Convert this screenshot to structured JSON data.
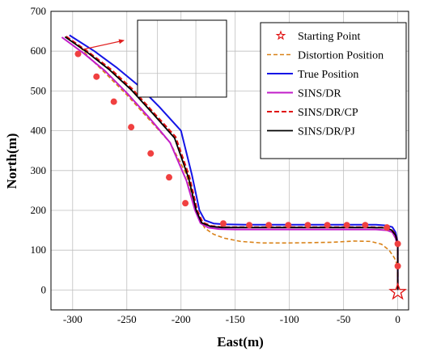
{
  "chart_data": {
    "type": "line",
    "title": "",
    "xlabel": "East(m)",
    "ylabel": "North(m)",
    "xlim": [
      -320,
      10
    ],
    "ylim": [
      -50,
      700
    ],
    "xticks": [
      -300,
      -250,
      -200,
      -150,
      -100,
      -50,
      0
    ],
    "yticks": [
      0,
      100,
      200,
      300,
      400,
      500,
      600,
      700
    ],
    "grid": true,
    "legend_position": "top-right",
    "colors": {
      "distortion": "#D98218",
      "true": "#1414E6",
      "sins_dr": "#C21DC9",
      "sins_dr_cp": "#E01010",
      "sins_dr_pj": "#000000",
      "markers": "#F04040",
      "arrow": "#E02020"
    },
    "starting_point": {
      "name": "Starting Point",
      "x": 0,
      "y": -5
    },
    "series": [
      {
        "name": "Distortion Position",
        "style": "dashed",
        "x": [
          -293,
          -285,
          -270,
          -250,
          -230,
          -210,
          -195,
          -185,
          -178,
          -170,
          -160,
          -145,
          -125,
          -100,
          -80,
          -60,
          -40,
          -25,
          -15,
          -8,
          -3,
          0
        ],
        "y": [
          610,
          585,
          545,
          490,
          430,
          370,
          290,
          190,
          155,
          140,
          130,
          122,
          118,
          118,
          119,
          120,
          123,
          122,
          115,
          100,
          80,
          60
        ]
      },
      {
        "name": "True Position",
        "style": "solid",
        "x": [
          -303,
          -280,
          -260,
          -240,
          -220,
          -200,
          -190,
          -183,
          -178,
          -170,
          -160,
          -140,
          -120,
          -100,
          -80,
          -60,
          -40,
          -20,
          -10,
          -5,
          -2,
          0,
          0,
          0
        ],
        "y": [
          640,
          600,
          560,
          515,
          460,
          400,
          290,
          200,
          175,
          167,
          165,
          164,
          164,
          164,
          164,
          164,
          164,
          164,
          162,
          158,
          145,
          120,
          60,
          0
        ]
      },
      {
        "name": "SINS/DR",
        "style": "solid",
        "x": [
          -310,
          -290,
          -270,
          -250,
          -230,
          -210,
          -195,
          -187,
          -182,
          -175,
          -165,
          -150,
          -130,
          -100,
          -70,
          -40,
          -20,
          -10,
          -5,
          -2,
          0,
          0,
          0
        ],
        "y": [
          635,
          595,
          550,
          495,
          435,
          370,
          275,
          200,
          168,
          157,
          153,
          152,
          152,
          152,
          152,
          152,
          152,
          150,
          145,
          130,
          110,
          50,
          0
        ]
      },
      {
        "name": "SINS/DR/CP",
        "style": "dashed",
        "x": [
          -306,
          -285,
          -265,
          -245,
          -225,
          -205,
          -192,
          -185,
          -180,
          -172,
          -162,
          -145,
          -125,
          -100,
          -75,
          -50,
          -25,
          -12,
          -6,
          -2,
          0,
          0,
          0
        ],
        "y": [
          637,
          597,
          555,
          505,
          445,
          385,
          283,
          200,
          170,
          161,
          158,
          158,
          158,
          158,
          158,
          158,
          158,
          157,
          152,
          140,
          115,
          55,
          0
        ]
      },
      {
        "name": "SINS/DR/PJ",
        "style": "solid",
        "x": [
          -307,
          -286,
          -266,
          -246,
          -226,
          -206,
          -193,
          -186,
          -181,
          -173,
          -163,
          -146,
          -126,
          -100,
          -75,
          -50,
          -25,
          -12,
          -6,
          -2,
          0,
          0,
          0
        ],
        "y": [
          636,
          596,
          553,
          503,
          443,
          382,
          281,
          200,
          169,
          160,
          157,
          157,
          157,
          157,
          157,
          157,
          157,
          156,
          151,
          138,
          113,
          55,
          0
        ]
      }
    ],
    "markers": {
      "x": [
        -295,
        -278,
        -262,
        -246,
        -228,
        -211,
        -196,
        -161,
        -137,
        -119,
        -101,
        -83,
        -65,
        -47,
        -30,
        -10,
        0,
        0
      ],
      "y": [
        593,
        536,
        473,
        409,
        343,
        283,
        218,
        167,
        163,
        163,
        163,
        163,
        163,
        163,
        163,
        157,
        116,
        60
      ]
    },
    "inset": {
      "xlim": [
        -238,
        -180
      ],
      "ylim": [
        560,
        690
      ]
    }
  }
}
